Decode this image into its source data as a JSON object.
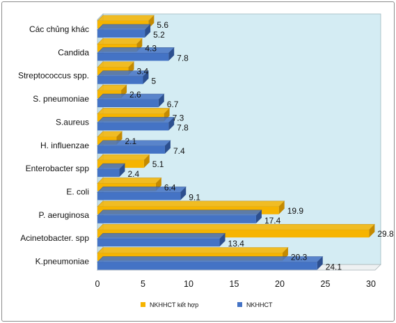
{
  "chart_data": {
    "type": "bar",
    "orientation": "horizontal",
    "categories": [
      "Các chủng khác",
      "Candida",
      "Streptococcus spp.",
      "S. pneumoniae",
      "S.aureus",
      "H. influenzae",
      "Enterobacter spp",
      "E. coli",
      "P. aeruginosa",
      "Acinetobacter. spp",
      "K.pneumoniae"
    ],
    "series": [
      {
        "name": "NKHHCT kết hợp",
        "values": [
          5.6,
          4.3,
          3.4,
          2.6,
          7.3,
          2.1,
          5.1,
          6.4,
          19.9,
          29.8,
          20.3
        ]
      },
      {
        "name": "NKHHCT",
        "values": [
          5.2,
          7.8,
          5,
          6.7,
          7.8,
          7.4,
          2.4,
          9.1,
          17.4,
          13.4,
          24.1
        ]
      }
    ],
    "value_labels": [
      [
        "5.6",
        "4.3",
        "3.4",
        "2.6",
        "7.3",
        "2.1",
        "5.1",
        "6.4",
        "19.9",
        "29.8",
        "20.3"
      ],
      [
        "5.2",
        "7.8",
        "5",
        "6.7",
        "7.8",
        "7.4",
        "2.4",
        "9.1",
        "17.4",
        "13.4",
        "24.1"
      ]
    ],
    "xlim": [
      0,
      30
    ],
    "ticks": [
      "0",
      "5",
      "10",
      "15",
      "20",
      "25",
      "30"
    ],
    "legend_position": "bottom",
    "grid": false,
    "colors": {
      "series_0": "#f6b400",
      "series_0_side": "#c48a00",
      "series_1": "#4473c5",
      "series_1_side": "#2c4f8f",
      "plot_background": "#d4ecf3",
      "floor": "#eef1f2"
    }
  }
}
